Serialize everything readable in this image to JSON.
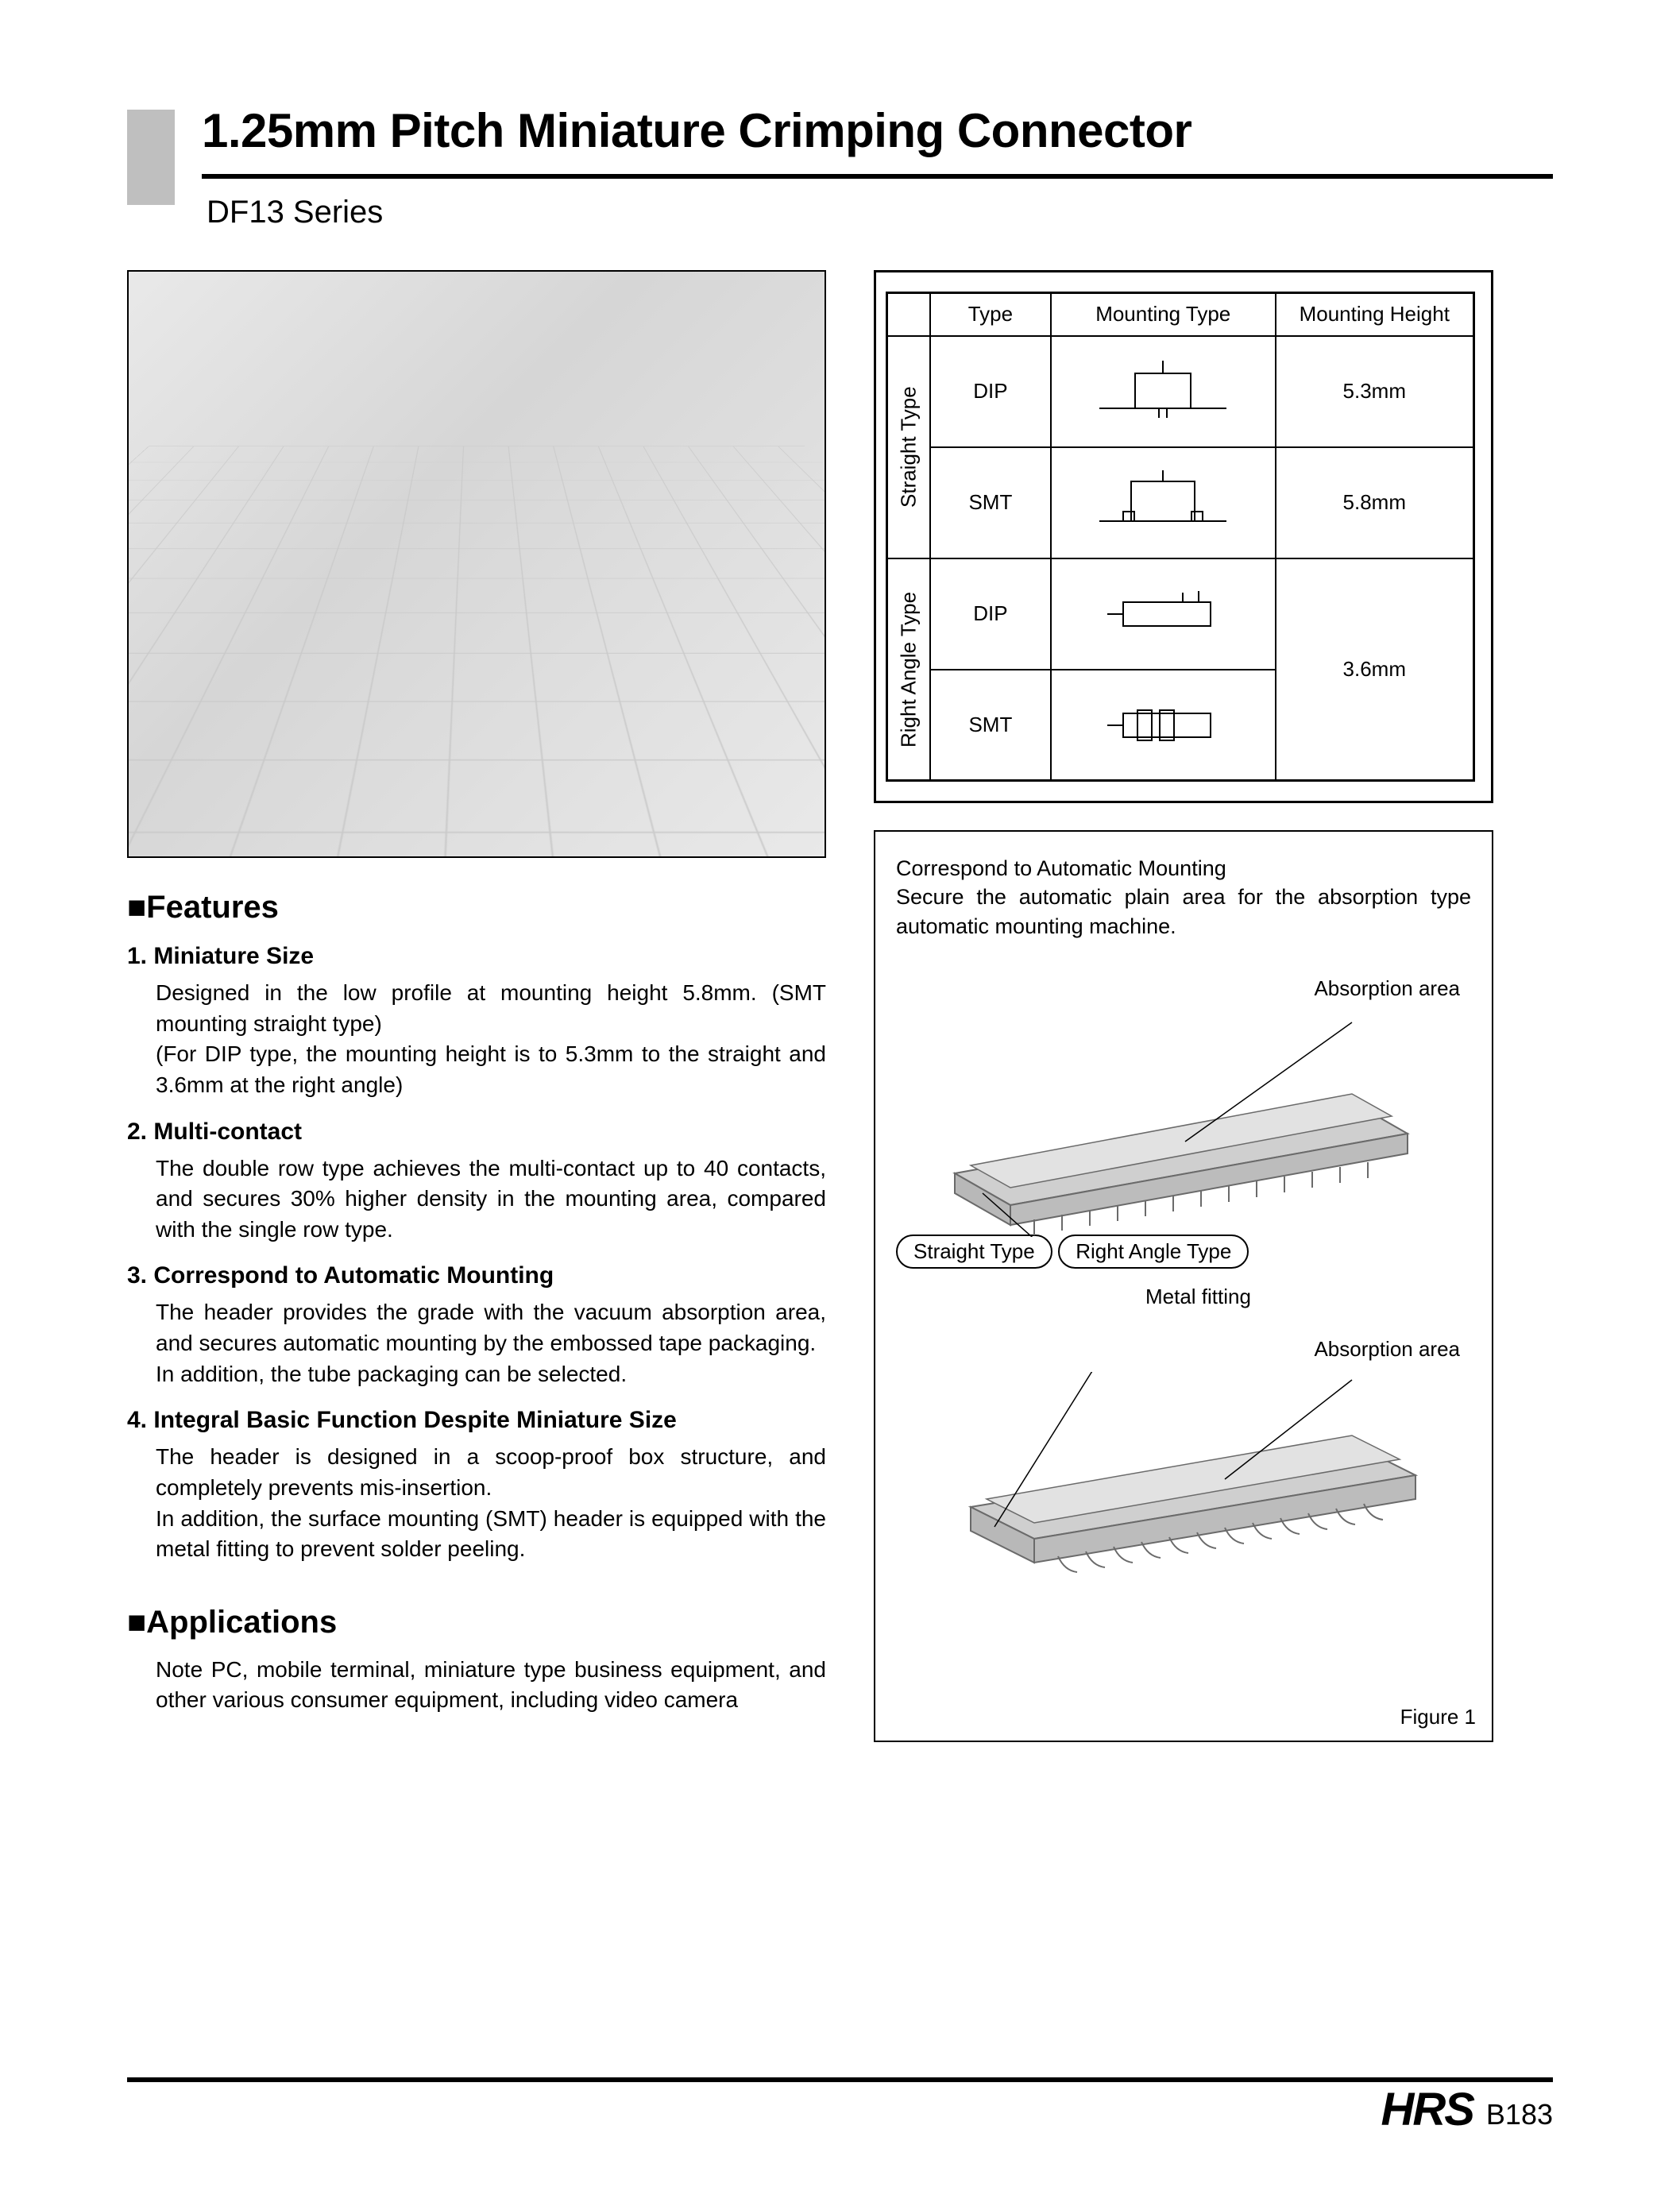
{
  "header": {
    "title": "1.25mm Pitch Miniature Crimping Connector",
    "series": "DF13 Series"
  },
  "type_table": {
    "headers": [
      "Type",
      "Mounting Type",
      "Mounting Height"
    ],
    "groups": [
      {
        "group_label": "Straight Type",
        "rows": [
          {
            "type": "DIP",
            "height": "5.3mm"
          },
          {
            "type": "SMT",
            "height": "5.8mm"
          }
        ]
      },
      {
        "group_label": "Right Angle Type",
        "rows": [
          {
            "type": "DIP",
            "height_merged": "3.6mm"
          },
          {
            "type": "SMT"
          }
        ]
      }
    ]
  },
  "features": {
    "title": "Features",
    "items": [
      {
        "num": "1.",
        "heading": "Miniature Size",
        "body": "Designed in the low profile at mounting height 5.8mm. (SMT mounting straight type)\n(For DIP type, the mounting height is to 5.3mm to the straight and 3.6mm at the right angle)"
      },
      {
        "num": "2.",
        "heading": "Multi-contact",
        "body": "The double row type achieves the multi-contact up to 40 contacts, and secures 30% higher density in the mounting area, compared with the single row type."
      },
      {
        "num": "3.",
        "heading": "Correspond to Automatic Mounting",
        "body": "The header provides the grade with the vacuum absorption area, and secures automatic mounting by the embossed tape packaging.\nIn addition, the tube packaging can be selected."
      },
      {
        "num": "4.",
        "heading": "Integral Basic Function Despite Miniature Size",
        "body": "The header is designed in a scoop-proof box structure, and completely prevents mis-insertion.\nIn addition, the surface mounting (SMT) header is equipped with the metal fitting to prevent solder peeling."
      }
    ]
  },
  "applications": {
    "title": "Applications",
    "body": "Note PC, mobile terminal, miniature type business equipment, and other various consumer equipment, including video camera"
  },
  "figure": {
    "intro_line1": "Correspond to Automatic Mounting",
    "intro_line2": "Secure the automatic plain area for the absorption type automatic mounting machine.",
    "straight_label": "Straight Type",
    "right_angle_label": "Right Angle Type",
    "absorption_label": "Absorption area",
    "metal_fitting_label": "Metal fitting",
    "caption": "Figure 1"
  },
  "footer": {
    "logo": "HRS",
    "page": "B183"
  },
  "colors": {
    "tab_grey": "#bfbfbf",
    "rule": "#000000",
    "text": "#000000",
    "photo_bg": "#e2e2e2",
    "connector_body": "#cfcfcf",
    "connector_edge": "#6a6a6a"
  }
}
